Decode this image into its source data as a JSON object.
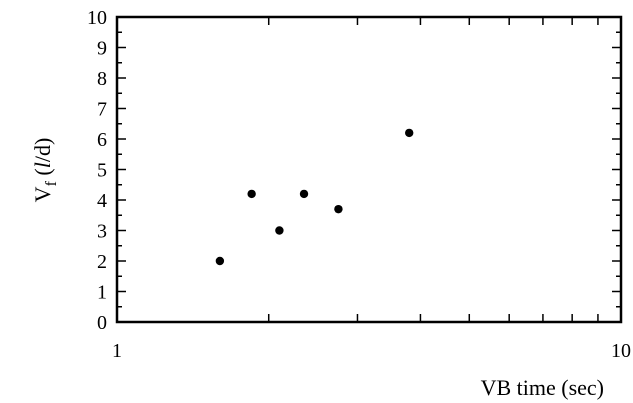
{
  "chart_data": {
    "type": "scatter",
    "title": "",
    "xlabel": "VB time (sec)",
    "ylabel": {
      "prefix": "V",
      "subscript": "f",
      "open": " (",
      "italic": "l",
      "rest": "/d)"
    },
    "x_scale": "log",
    "xlim": [
      1,
      10
    ],
    "ylim": [
      0,
      10
    ],
    "x_tick_labels": [
      {
        "value": 1,
        "label": "1"
      },
      {
        "value": 10,
        "label": "10"
      }
    ],
    "y_tick_labels": [
      {
        "value": 0,
        "label": "0"
      },
      {
        "value": 1,
        "label": "1"
      },
      {
        "value": 2,
        "label": "2"
      },
      {
        "value": 3,
        "label": "3"
      },
      {
        "value": 4,
        "label": "4"
      },
      {
        "value": 5,
        "label": "5"
      },
      {
        "value": 6,
        "label": "6"
      },
      {
        "value": 7,
        "label": "7"
      },
      {
        "value": 8,
        "label": "8"
      },
      {
        "value": 9,
        "label": "9"
      },
      {
        "value": 10,
        "label": "10"
      }
    ],
    "grid": false,
    "series": [
      {
        "color": "#000000",
        "points": [
          {
            "x": 1.6,
            "y": 2.0
          },
          {
            "x": 1.85,
            "y": 4.2
          },
          {
            "x": 2.1,
            "y": 3.0
          },
          {
            "x": 2.35,
            "y": 4.2
          },
          {
            "x": 2.75,
            "y": 3.7
          },
          {
            "x": 3.8,
            "y": 6.2
          }
        ]
      }
    ]
  }
}
